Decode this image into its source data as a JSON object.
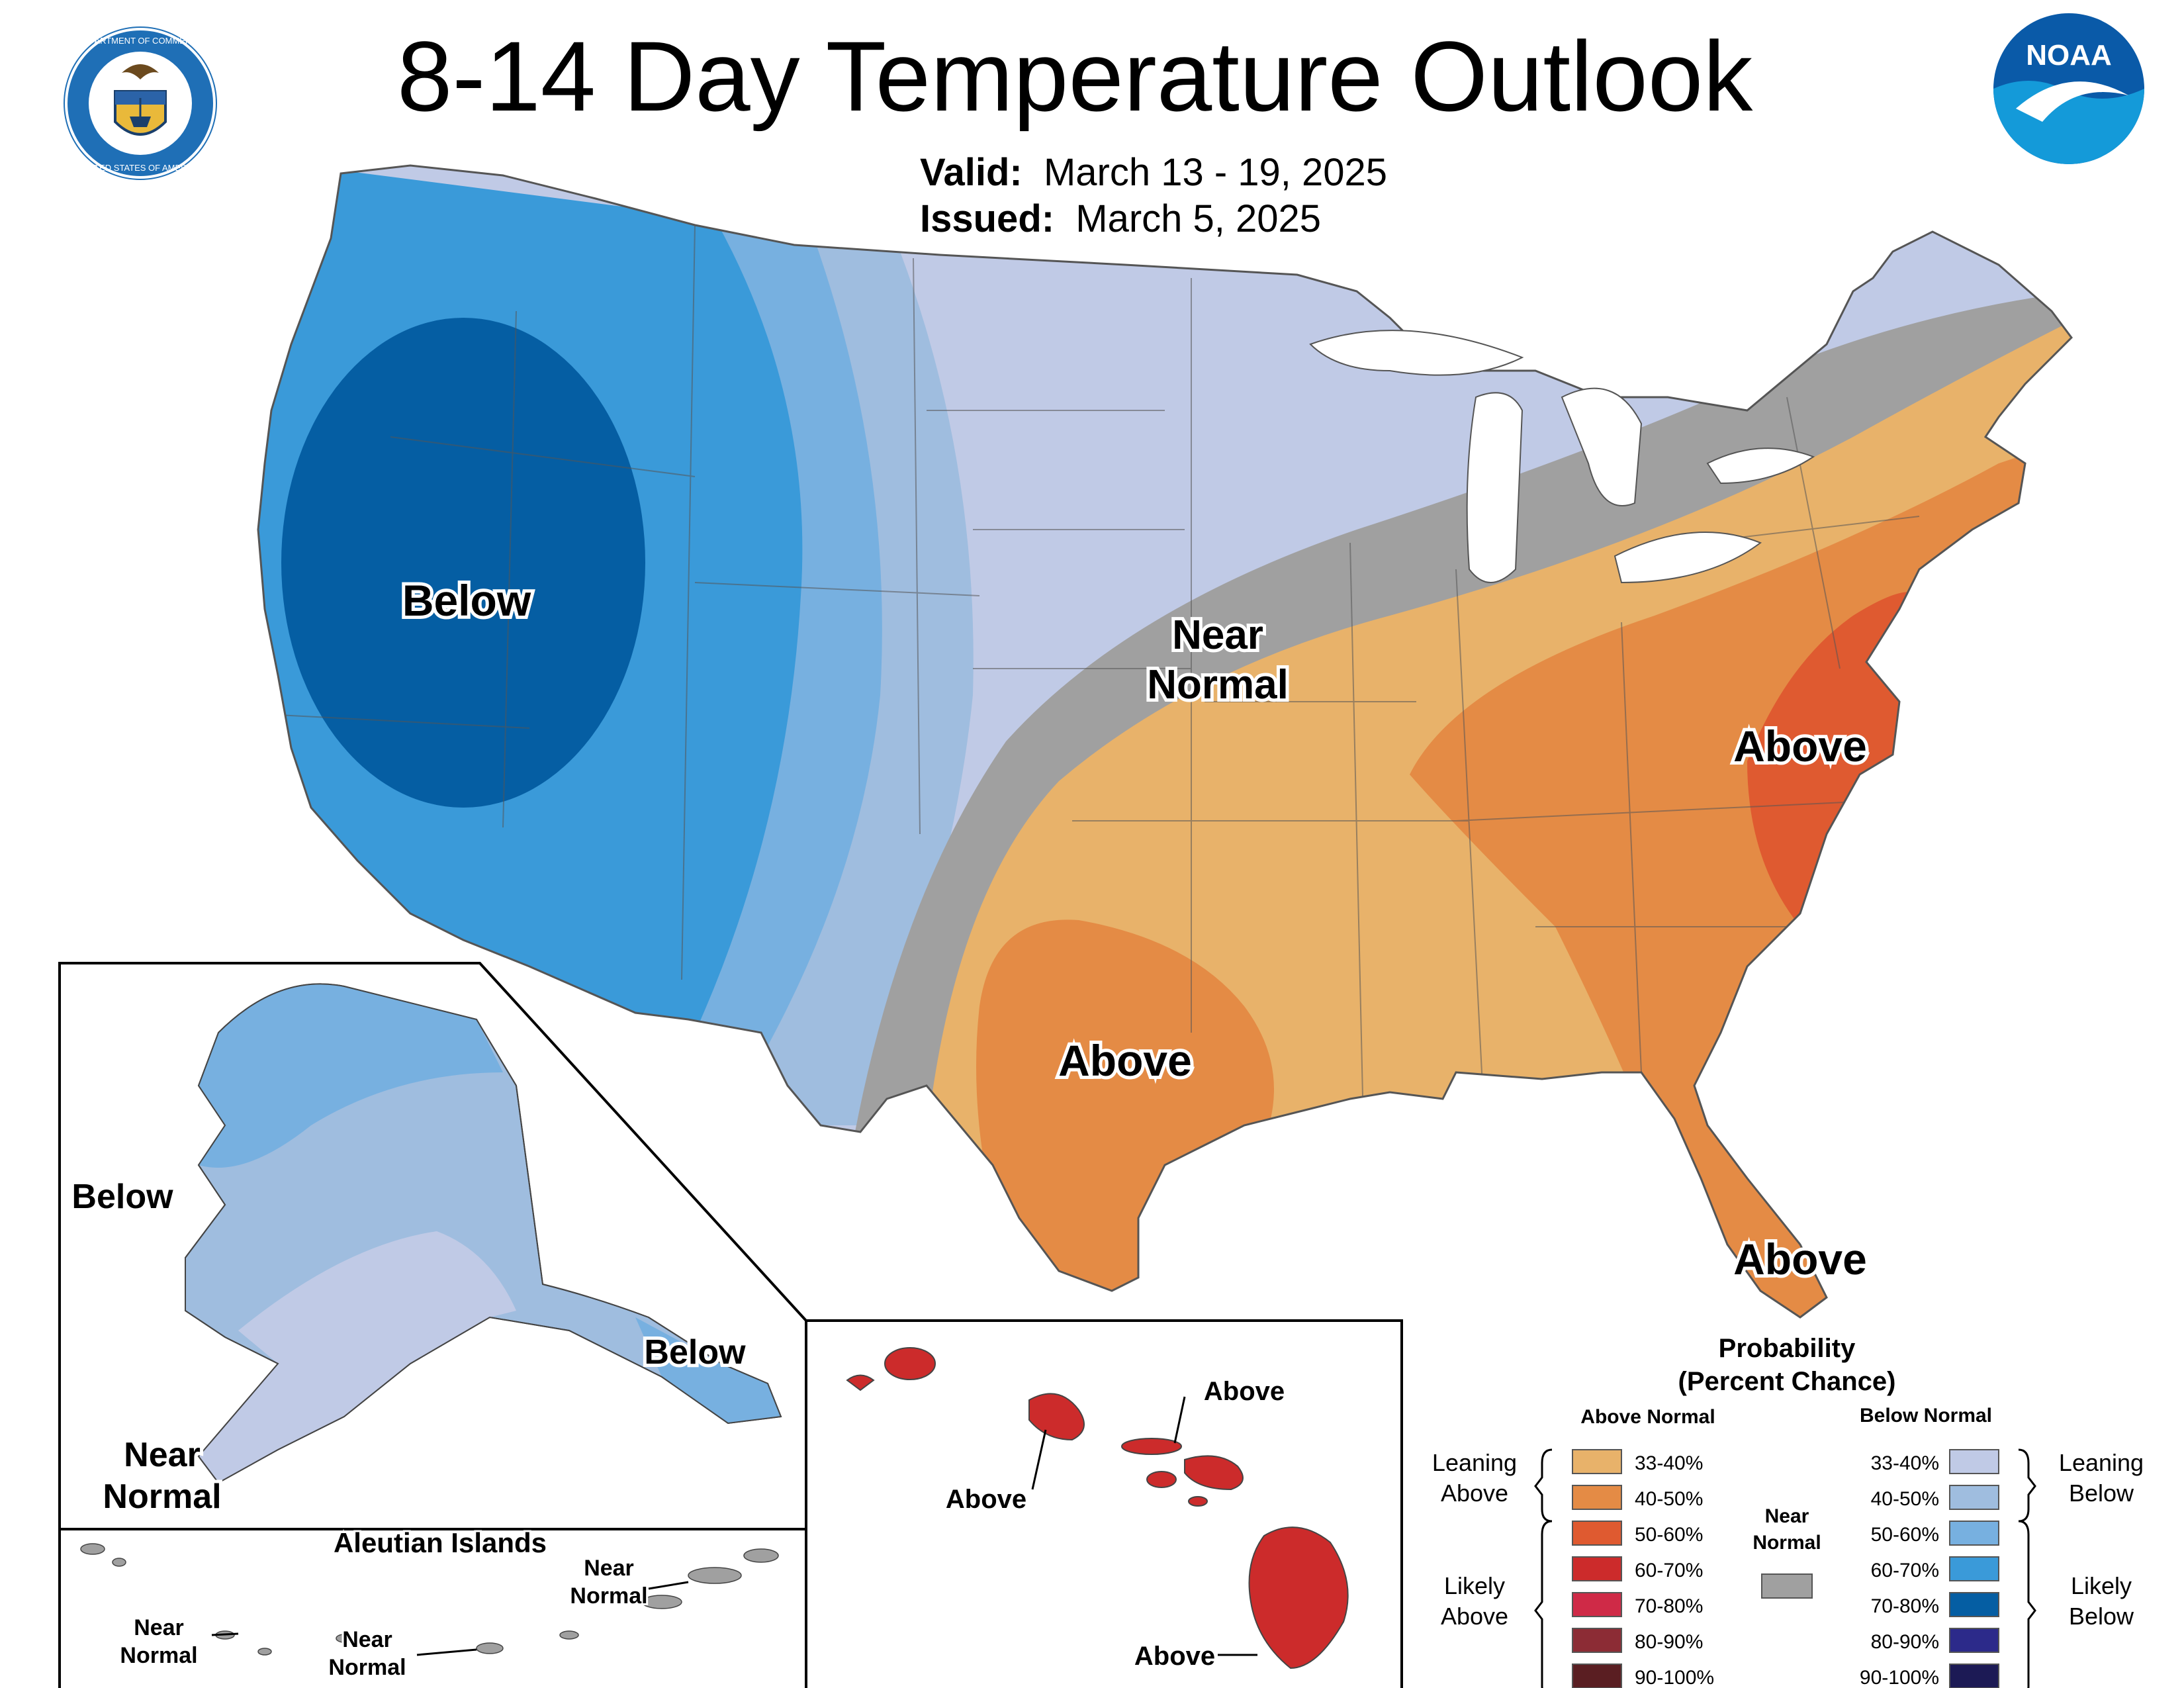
{
  "header": {
    "title": "8-14 Day Temperature Outlook",
    "valid_label": "Valid:",
    "valid_value": "March 13 - 19, 2025",
    "issued_label": "Issued:",
    "issued_value": "March 5, 2025"
  },
  "logos": {
    "commerce_seal": "commerce-seal-icon",
    "commerce_text_top": "DEPARTMENT OF COMMERCE",
    "commerce_text_bottom": "UNITED STATES OF AMERICA",
    "noaa": "noaa-logo-icon",
    "noaa_text": "NOAA"
  },
  "conus_labels": {
    "below": "Below",
    "near_normal_1": "Near",
    "near_normal_2": "Normal",
    "above_southeast": "Above",
    "above_texas": "Above",
    "above_florida": "Above"
  },
  "alaska": {
    "below_west": "Below",
    "below_southeast": "Below",
    "near_normal_1": "Near",
    "near_normal_2": "Normal"
  },
  "aleutians": {
    "title": "Aleutian Islands",
    "near_1a": "Near",
    "near_1b": "Normal",
    "near_2a": "Near",
    "near_2b": "Normal",
    "near_3a": "Near",
    "near_3b": "Normal"
  },
  "hawaii": {
    "above_1": "Above",
    "above_2": "Above",
    "above_3": "Above"
  },
  "legend": {
    "title_1": "Probability",
    "title_2": "(Percent Chance)",
    "above_header": "Above Normal",
    "below_header": "Below Normal",
    "leaning_above_1": "Leaning",
    "leaning_above_2": "Above",
    "likely_above_1": "Likely",
    "likely_above_2": "Above",
    "leaning_below_1": "Leaning",
    "leaning_below_2": "Below",
    "likely_below_1": "Likely",
    "likely_below_2": "Below",
    "near_normal_1": "Near",
    "near_normal_2": "Normal",
    "near_normal_color": "#a0a0a0",
    "above": [
      {
        "range": "33-40%",
        "color": "#e8b26a"
      },
      {
        "range": "40-50%",
        "color": "#e48b45"
      },
      {
        "range": "50-60%",
        "color": "#df5a30"
      },
      {
        "range": "60-70%",
        "color": "#cc2b2b"
      },
      {
        "range": "70-80%",
        "color": "#cf2a47"
      },
      {
        "range": "80-90%",
        "color": "#8c2c35"
      },
      {
        "range": "90-100%",
        "color": "#5a1e22"
      }
    ],
    "below": [
      {
        "range": "33-40%",
        "color": "#c0cae6"
      },
      {
        "range": "40-50%",
        "color": "#9fbddf"
      },
      {
        "range": "50-60%",
        "color": "#77b0e0"
      },
      {
        "range": "60-70%",
        "color": "#3a9ad9"
      },
      {
        "range": "70-80%",
        "color": "#055ea3"
      },
      {
        "range": "80-90%",
        "color": "#2c2a8a"
      },
      {
        "range": "90-100%",
        "color": "#1c1a55"
      }
    ]
  }
}
